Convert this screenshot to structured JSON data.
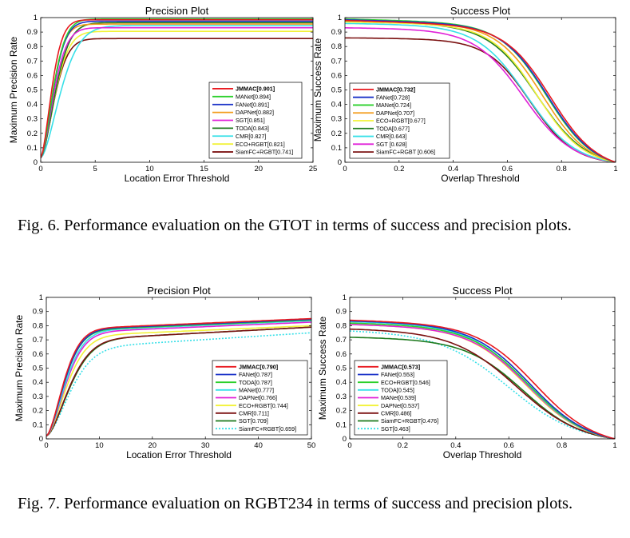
{
  "figures": [
    {
      "caption": "Fig. 6.   Performance evaluation on the GTOT in terms of success and precision plots.",
      "panels": [
        "gtot-precision",
        "gtot-success"
      ]
    },
    {
      "caption": "Fig. 7.   Performance evaluation on RGBT234 in terms of success and precision plots.",
      "panels": [
        "rgbt-precision",
        "rgbt-success"
      ]
    }
  ],
  "colors": {
    "red": "#e8191f",
    "green": "#2cd02c",
    "blue": "#1a32c8",
    "orange": "#f39c1b",
    "magenta": "#e020d8",
    "darkgreen": "#1e7a1e",
    "cyan": "#38e0e8",
    "yellow": "#f2f238",
    "maroon": "#7b1010",
    "black": "#000000"
  },
  "chart_data": [
    {
      "id": "gtot-precision",
      "type": "line",
      "title": "Precision Plot",
      "xlabel": "Location Error Threshold",
      "ylabel": "Maximum Precision Rate",
      "xlim": [
        0,
        25
      ],
      "ylim": [
        0,
        1
      ],
      "xticks": [
        0,
        5,
        10,
        15,
        20,
        25
      ],
      "yticks": [
        0,
        0.1,
        0.2,
        0.3,
        0.4,
        0.5,
        0.6,
        0.7,
        0.8,
        0.9,
        1
      ],
      "legend_position": "bottom-right",
      "curve_kind": "precision",
      "series": [
        {
          "name": "JMMAC[0.901]",
          "color": "red",
          "end": 0.985,
          "rise": 1.0,
          "start": 0.03
        },
        {
          "name": "MANet[0.894]",
          "color": "green",
          "end": 0.99,
          "rise": 1.15,
          "start": 0.03
        },
        {
          "name": "FANet[0.891]",
          "color": "blue",
          "end": 0.975,
          "rise": 1.15,
          "start": 0.03
        },
        {
          "name": "DAPNet[0.882]",
          "color": "orange",
          "end": 0.955,
          "rise": 1.1,
          "start": 0.03
        },
        {
          "name": "SGT[0.851]",
          "color": "magenta",
          "end": 0.93,
          "rise": 1.2,
          "start": 0.03
        },
        {
          "name": "TODA[0.843]",
          "color": "darkgreen",
          "end": 0.965,
          "rise": 1.35,
          "start": 0.03
        },
        {
          "name": "CMR[0.827]",
          "color": "cyan",
          "end": 0.945,
          "rise": 1.8,
          "start": 0.03
        },
        {
          "name": "ECO+RGBT[0.821]",
          "color": "yellow",
          "end": 0.905,
          "rise": 1.3,
          "start": 0.03
        },
        {
          "name": "SiamFC+RGBT[0.741]",
          "color": "maroon",
          "end": 0.855,
          "rise": 1.25,
          "start": 0.03
        }
      ]
    },
    {
      "id": "gtot-success",
      "type": "line",
      "title": "Success Plot",
      "xlabel": "Overlap Threshold",
      "ylabel": "Maximum Success Rate",
      "xlim": [
        0,
        1
      ],
      "ylim": [
        0,
        1
      ],
      "xticks": [
        0,
        0.2,
        0.4,
        0.6,
        0.8,
        1
      ],
      "yticks": [
        0,
        0.1,
        0.2,
        0.3,
        0.4,
        0.5,
        0.6,
        0.7,
        0.8,
        0.9,
        1
      ],
      "legend_position": "bottom-left",
      "curve_kind": "success",
      "series": [
        {
          "name": "JMMAC[0.732]",
          "color": "red",
          "start": 0.98,
          "mid": 0.76,
          "width": 0.085
        },
        {
          "name": "FANet[0.728]",
          "color": "blue",
          "start": 0.985,
          "mid": 0.75,
          "width": 0.085
        },
        {
          "name": "MANet[0.724]",
          "color": "green",
          "start": 0.99,
          "mid": 0.745,
          "width": 0.085
        },
        {
          "name": "DAPNet[0.707]",
          "color": "orange",
          "start": 0.98,
          "mid": 0.73,
          "width": 0.085
        },
        {
          "name": "ECO+RGBT[0.677]",
          "color": "yellow",
          "start": 0.97,
          "mid": 0.71,
          "width": 0.085
        },
        {
          "name": "TODA[0.677]",
          "color": "darkgreen",
          "start": 0.975,
          "mid": 0.71,
          "width": 0.09
        },
        {
          "name": "CMR[0.643]",
          "color": "cyan",
          "start": 0.96,
          "mid": 0.67,
          "width": 0.09
        },
        {
          "name": "SGT [0.628]",
          "color": "magenta",
          "start": 0.93,
          "mid": 0.66,
          "width": 0.09
        },
        {
          "name": "SiamFC+RGBT [0.606]",
          "color": "maroon",
          "start": 0.86,
          "mid": 0.685,
          "width": 0.08
        }
      ]
    },
    {
      "id": "rgbt-precision",
      "type": "line",
      "title": "Precision Plot",
      "xlabel": "Location Error Threshold",
      "ylabel": "Maximum Precision Rate",
      "xlim": [
        0,
        50
      ],
      "ylim": [
        0,
        1
      ],
      "xticks": [
        0,
        10,
        20,
        30,
        40,
        50
      ],
      "yticks": [
        0,
        0.1,
        0.2,
        0.3,
        0.4,
        0.5,
        0.6,
        0.7,
        0.8,
        0.9,
        1
      ],
      "legend_position": "bottom-right",
      "curve_kind": "precision",
      "series": [
        {
          "name": "JMMAC[0.790]",
          "color": "red",
          "end": 0.85,
          "rise": 3.2,
          "start": 0.02,
          "slope": 0.004
        },
        {
          "name": "FANet[0.787]",
          "color": "blue",
          "end": 0.845,
          "rise": 3.3,
          "start": 0.02,
          "slope": 0.004
        },
        {
          "name": "TODA[0.787]",
          "color": "green",
          "end": 0.84,
          "rise": 3.3,
          "start": 0.02,
          "slope": 0.004
        },
        {
          "name": "MANet[0.777]",
          "color": "cyan",
          "end": 0.835,
          "rise": 3.5,
          "start": 0.02,
          "slope": 0.004
        },
        {
          "name": "DAPNet[0.766]",
          "color": "magenta",
          "end": 0.825,
          "rise": 3.6,
          "start": 0.02,
          "slope": 0.004
        },
        {
          "name": "ECO+RGBT[0.744]",
          "color": "yellow",
          "end": 0.8,
          "rise": 3.8,
          "start": 0.02,
          "slope": 0.004
        },
        {
          "name": "CMR[0.711]",
          "color": "maroon",
          "end": 0.79,
          "rise": 4.2,
          "start": 0.02,
          "slope": 0.005
        },
        {
          "name": "SGT[0.709]",
          "color": "darkgreen",
          "end": 0.79,
          "rise": 4.3,
          "start": 0.02,
          "slope": 0.005
        },
        {
          "name": "SiamFC+RGBT[0.659]",
          "color": "cyan",
          "end": 0.75,
          "rise": 4.4,
          "start": 0.02,
          "slope": 0.006,
          "dashed": true
        }
      ]
    },
    {
      "id": "rgbt-success",
      "type": "line",
      "title": "Success Plot",
      "xlabel": "Overlap Threshold",
      "ylabel": "Maximum Success Rate",
      "xlim": [
        0,
        1
      ],
      "ylim": [
        0,
        1
      ],
      "xticks": [
        0,
        0.2,
        0.4,
        0.6,
        0.8,
        1
      ],
      "yticks": [
        0,
        0.1,
        0.2,
        0.3,
        0.4,
        0.5,
        0.6,
        0.7,
        0.8,
        0.9,
        1
      ],
      "legend_position": "bottom-left",
      "curve_kind": "success",
      "series": [
        {
          "name": "JMMAC[0.573]",
          "color": "red",
          "start": 0.84,
          "mid": 0.7,
          "width": 0.11
        },
        {
          "name": "FANet[0.553]",
          "color": "blue",
          "start": 0.835,
          "mid": 0.68,
          "width": 0.11
        },
        {
          "name": "ECO+RGBT[0.546]",
          "color": "green",
          "start": 0.82,
          "mid": 0.675,
          "width": 0.11
        },
        {
          "name": "TODA[0.545]",
          "color": "cyan",
          "start": 0.83,
          "mid": 0.67,
          "width": 0.11
        },
        {
          "name": "MANet[0.539]",
          "color": "magenta",
          "start": 0.81,
          "mid": 0.67,
          "width": 0.11
        },
        {
          "name": "DAPNet[0.537]",
          "color": "yellow",
          "start": 0.81,
          "mid": 0.665,
          "width": 0.11
        },
        {
          "name": "CMR[0.486]",
          "color": "maroon",
          "start": 0.78,
          "mid": 0.63,
          "width": 0.12
        },
        {
          "name": "SiamFC+RGBT[0.476]",
          "color": "darkgreen",
          "start": 0.72,
          "mid": 0.655,
          "width": 0.11
        },
        {
          "name": "SGT[0.463]",
          "color": "cyan",
          "start": 0.77,
          "mid": 0.6,
          "width": 0.13,
          "dashed": true
        }
      ]
    }
  ]
}
